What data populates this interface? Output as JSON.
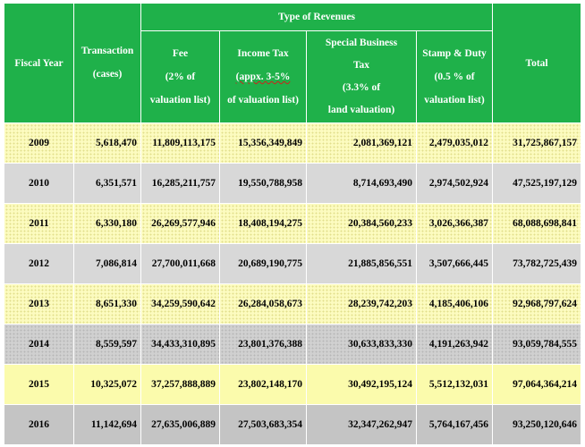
{
  "header": {
    "fiscal_year": "Fiscal Year",
    "transaction": [
      "Transaction",
      "(cases)"
    ],
    "group_title": "Type of Revenues",
    "fee": [
      "Fee",
      "(2% of",
      "valuation list)"
    ],
    "income_tax": [
      "Income Tax",
      "(appx. 3-5%",
      "of valuation list)"
    ],
    "special_business_tax": [
      "Special Business",
      "Tax",
      "(3.3% of",
      "land valuation)"
    ],
    "stamp_duty": [
      "Stamp & Duty",
      "(0.5 % of",
      "valuation list)"
    ],
    "total": "Total"
  },
  "rows": [
    {
      "year": "2009",
      "transaction": "5,618,470",
      "fee": "11,809,113,175",
      "income_tax": "15,356,349,849",
      "sbt": "2,081,369,121",
      "stamp": "2,479,035,012",
      "total": "31,725,867,157"
    },
    {
      "year": "2010",
      "transaction": "6,351,571",
      "fee": "16,285,211,757",
      "income_tax": "19,550,788,958",
      "sbt": "8,714,693,490",
      "stamp": "2,974,502,924",
      "total": "47,525,197,129"
    },
    {
      "year": "2011",
      "transaction": "6,330,180",
      "fee": "26,269,577,946",
      "income_tax": "18,408,194,275",
      "sbt": "20,384,560,233",
      "stamp": "3,026,366,387",
      "total": "68,088,698,841"
    },
    {
      "year": "2012",
      "transaction": "7,086,814",
      "fee": "27,700,011,668",
      "income_tax": "20,689,190,775",
      "sbt": "21,885,856,551",
      "stamp": "3,507,666,445",
      "total": "73,782,725,439"
    },
    {
      "year": "2013",
      "transaction": "8,651,330",
      "fee": "34,259,590,642",
      "income_tax": "26,284,058,673",
      "sbt": "28,239,742,203",
      "stamp": "4,185,406,106",
      "total": "92,968,797,624"
    },
    {
      "year": "2014",
      "transaction": "8,559,597",
      "fee": "34,433,310,895",
      "income_tax": "23,801,376,388",
      "sbt": "30,633,833,330",
      "stamp": "4,191,263,942",
      "total": "93,059,784,555"
    },
    {
      "year": "2015",
      "transaction": "10,325,072",
      "fee": "37,257,888,889",
      "income_tax": "23,802,148,170",
      "sbt": "30,492,195,124",
      "stamp": "5,512,132,031",
      "total": "97,064,364,214"
    },
    {
      "year": "2016",
      "transaction": "11,142,694",
      "fee": "27,635,006,889",
      "income_tax": "27,503,683,354",
      "sbt": "32,347,262,947",
      "stamp": "5,764,167,456",
      "total": "93,250,120,646"
    }
  ],
  "colors": {
    "header_green": "#1fb14a",
    "row_yellow": "#fcfbbf",
    "row_gray": "#d8d8d8"
  }
}
